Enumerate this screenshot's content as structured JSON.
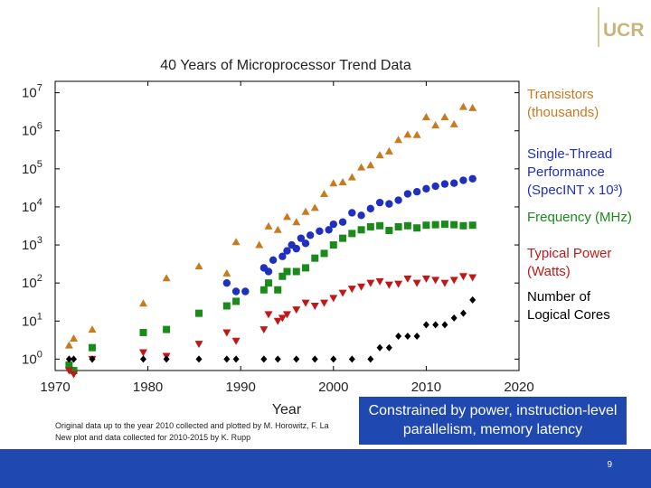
{
  "logo": {
    "text": "UCR"
  },
  "slide": {
    "callout": "Constrained by power, instruction-level parallelism, memory latency",
    "credit_line1": "Original data up to the year 2010 collected and plotted by M. Horowitz, F. La",
    "credit_line2": "New plot and data collected for 2010-2015 by K. Rupp",
    "page_number": "9"
  },
  "chart_data": {
    "type": "scatter",
    "title": "40 Years of Microprocessor Trend Data",
    "xlabel": "Year",
    "ylabel": "",
    "xlim": [
      1970,
      2020
    ],
    "ylim_log10": [
      -0.3,
      7.3
    ],
    "yscale": "log",
    "x_ticks": [
      1970,
      1980,
      1990,
      2000,
      2010,
      2020
    ],
    "y_ticks": [
      {
        "exp": 0,
        "base": "10",
        "sup": "0"
      },
      {
        "exp": 1,
        "base": "10",
        "sup": "1"
      },
      {
        "exp": 2,
        "base": "10",
        "sup": "2"
      },
      {
        "exp": 3,
        "base": "10",
        "sup": "3"
      },
      {
        "exp": 4,
        "base": "10",
        "sup": "4"
      },
      {
        "exp": 5,
        "base": "10",
        "sup": "5"
      },
      {
        "exp": 6,
        "base": "10",
        "sup": "6"
      },
      {
        "exp": 7,
        "base": "10",
        "sup": "7"
      }
    ],
    "series": [
      {
        "name": "Transistors (thousands)",
        "legend_lines": [
          "Transistors",
          "(thousands)"
        ],
        "color": "#c87a1e",
        "marker": "triangle-up",
        "points": [
          [
            1971.5,
            2.3
          ],
          [
            1972,
            3.5
          ],
          [
            1974,
            6
          ],
          [
            1979.5,
            29
          ],
          [
            1982,
            134
          ],
          [
            1985.5,
            275
          ],
          [
            1988.5,
            180
          ],
          [
            1989.5,
            1200
          ],
          [
            1992,
            1000
          ],
          [
            1993,
            3100
          ],
          [
            1994,
            2500
          ],
          [
            1995,
            5500
          ],
          [
            1996,
            4000
          ],
          [
            1997,
            7500
          ],
          [
            1998,
            9500
          ],
          [
            1999,
            22000
          ],
          [
            2000,
            42000
          ],
          [
            2001,
            45000
          ],
          [
            2002,
            60000
          ],
          [
            2003,
            110000
          ],
          [
            2004,
            125000
          ],
          [
            2005,
            230000
          ],
          [
            2006,
            290000
          ],
          [
            2007,
            580000
          ],
          [
            2008,
            800000
          ],
          [
            2009,
            780000
          ],
          [
            2010,
            2300000
          ],
          [
            2011,
            1400000
          ],
          [
            2012,
            2300000
          ],
          [
            2013,
            1500000
          ],
          [
            2014,
            4300000
          ],
          [
            2015,
            4000000
          ]
        ]
      },
      {
        "name": "Single-Thread Performance (SpecINT x 10^3)",
        "legend_lines": [
          "Single-Thread",
          "Performance",
          "(SpecINT x 10³)"
        ],
        "color": "#1f2fc0",
        "marker": "circle",
        "points": [
          [
            1988.5,
            100
          ],
          [
            1989.5,
            60
          ],
          [
            1990.5,
            60
          ],
          [
            1992.5,
            250
          ],
          [
            1993,
            200
          ],
          [
            1993.5,
            400
          ],
          [
            1994.5,
            500
          ],
          [
            1995,
            700
          ],
          [
            1995.5,
            1000
          ],
          [
            1996,
            800
          ],
          [
            1996.5,
            1500
          ],
          [
            1997,
            1100
          ],
          [
            1997.5,
            1800
          ],
          [
            1998.5,
            2300
          ],
          [
            1999.5,
            2500
          ],
          [
            2000,
            3500
          ],
          [
            2001,
            4000
          ],
          [
            2002,
            7000
          ],
          [
            2003,
            6000
          ],
          [
            2004,
            9000
          ],
          [
            2005,
            13000
          ],
          [
            2006,
            12000
          ],
          [
            2007,
            15000
          ],
          [
            2008,
            22000
          ],
          [
            2009,
            25000
          ],
          [
            2010,
            30000
          ],
          [
            2011,
            35000
          ],
          [
            2012,
            40000
          ],
          [
            2013,
            42000
          ],
          [
            2014,
            50000
          ],
          [
            2015,
            55000
          ]
        ]
      },
      {
        "name": "Frequency (MHz)",
        "legend_lines": [
          "Frequency (MHz)"
        ],
        "color": "#1a8a1a",
        "marker": "square",
        "points": [
          [
            1971.5,
            0.7
          ],
          [
            1972,
            0.5
          ],
          [
            1974,
            2
          ],
          [
            1979.5,
            5
          ],
          [
            1982,
            6
          ],
          [
            1985.5,
            16
          ],
          [
            1988.5,
            25
          ],
          [
            1989.5,
            33
          ],
          [
            1992.5,
            66
          ],
          [
            1993,
            100
          ],
          [
            1994,
            66
          ],
          [
            1994.5,
            150
          ],
          [
            1995,
            200
          ],
          [
            1996,
            200
          ],
          [
            1997,
            250
          ],
          [
            1998,
            450
          ],
          [
            1999,
            600
          ],
          [
            2000,
            1000
          ],
          [
            2001,
            1500
          ],
          [
            2002,
            2000
          ],
          [
            2003,
            2500
          ],
          [
            2004,
            3000
          ],
          [
            2005,
            3200
          ],
          [
            2006,
            2400
          ],
          [
            2007,
            3000
          ],
          [
            2008,
            3200
          ],
          [
            2009,
            2800
          ],
          [
            2010,
            3300
          ],
          [
            2011,
            3400
          ],
          [
            2012,
            3500
          ],
          [
            2013,
            3400
          ],
          [
            2014,
            3200
          ],
          [
            2015,
            3300
          ]
        ]
      },
      {
        "name": "Typical Power (Watts)",
        "legend_lines": [
          "Typical Power",
          "(Watts)"
        ],
        "color": "#c01818",
        "marker": "triangle-down",
        "points": [
          [
            1971.5,
            0.5
          ],
          [
            1972,
            0.4
          ],
          [
            1974,
            1
          ],
          [
            1979.5,
            1.5
          ],
          [
            1982,
            1.2
          ],
          [
            1985.5,
            2.5
          ],
          [
            1988.5,
            5
          ],
          [
            1989.5,
            3
          ],
          [
            1992.5,
            6
          ],
          [
            1993,
            15
          ],
          [
            1994,
            10
          ],
          [
            1994.5,
            12
          ],
          [
            1995,
            15
          ],
          [
            1996,
            20
          ],
          [
            1997,
            30
          ],
          [
            1998,
            25
          ],
          [
            1999,
            30
          ],
          [
            2000,
            40
          ],
          [
            2001,
            55
          ],
          [
            2002,
            70
          ],
          [
            2003,
            80
          ],
          [
            2004,
            100
          ],
          [
            2005,
            110
          ],
          [
            2006,
            90
          ],
          [
            2007,
            95
          ],
          [
            2008,
            130
          ],
          [
            2009,
            100
          ],
          [
            2010,
            130
          ],
          [
            2011,
            120
          ],
          [
            2012,
            100
          ],
          [
            2013,
            120
          ],
          [
            2014,
            150
          ],
          [
            2015,
            140
          ]
        ]
      },
      {
        "name": "Number of Logical Cores",
        "legend_lines": [
          "Number of",
          "Logical Cores"
        ],
        "color": "#000000",
        "marker": "diamond",
        "points": [
          [
            1971.5,
            1
          ],
          [
            1972,
            1
          ],
          [
            1974,
            1
          ],
          [
            1979.5,
            1
          ],
          [
            1982,
            1
          ],
          [
            1985.5,
            1
          ],
          [
            1988.5,
            1
          ],
          [
            1989.5,
            1
          ],
          [
            1992.5,
            1
          ],
          [
            1994,
            1
          ],
          [
            1996,
            1
          ],
          [
            1998,
            1
          ],
          [
            2000,
            1
          ],
          [
            2002,
            1
          ],
          [
            2004,
            1
          ],
          [
            2005,
            2
          ],
          [
            2006,
            2
          ],
          [
            2007,
            4
          ],
          [
            2008,
            4
          ],
          [
            2009,
            4
          ],
          [
            2010,
            8
          ],
          [
            2011,
            8
          ],
          [
            2012,
            8
          ],
          [
            2013,
            12
          ],
          [
            2014,
            16
          ],
          [
            2015,
            36
          ]
        ]
      }
    ]
  }
}
